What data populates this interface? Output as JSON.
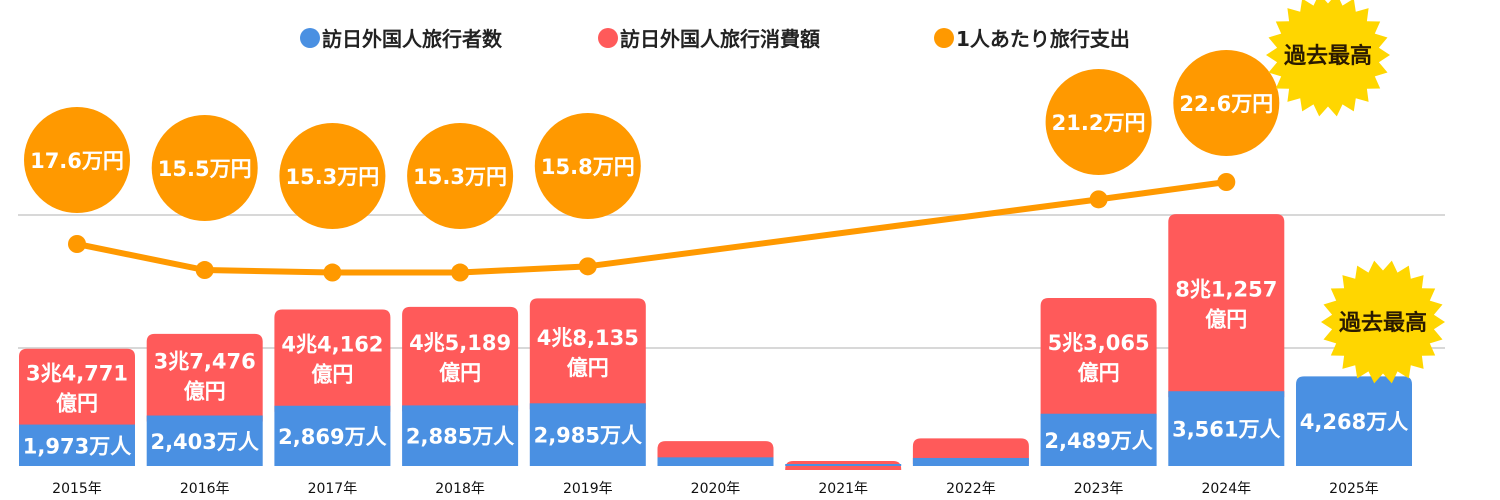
{
  "chart_data": {
    "type": "bar",
    "stacked": true,
    "categories": [
      "2015年",
      "2016年",
      "2017年",
      "2018年",
      "2019年",
      "2020年",
      "2021年",
      "2022年",
      "2023年",
      "2024年",
      "2025年"
    ],
    "series": [
      {
        "name": "訪日外国人旅行者数",
        "color": "#4a90e2",
        "unit": "万人",
        "values": [
          1973,
          2403,
          2869,
          2885,
          2985,
          412,
          25,
          383,
          2489,
          3561,
          4268
        ],
        "labels": [
          "1,973万人",
          "2,403万人",
          "2,869万人",
          "2,885万人",
          "2,985万人",
          "",
          "",
          "",
          "2,489万人",
          "3,561万人",
          "4,268万人"
        ]
      },
      {
        "name": "訪日外国人旅行消費額",
        "color": "#ff5a5a",
        "unit": "億円",
        "values": [
          34771,
          37476,
          44162,
          45189,
          48135,
          7446,
          1208,
          8987,
          53065,
          81257,
          null
        ],
        "labels": [
          [
            "3兆4,771",
            "億円"
          ],
          [
            "3兆7,476",
            "億円"
          ],
          [
            "4兆4,162",
            "億円"
          ],
          [
            "4兆5,189",
            "億円"
          ],
          [
            "4兆8,135",
            "億円"
          ],
          null,
          null,
          null,
          [
            "5兆3,065",
            "億円"
          ],
          [
            "8兆1,257",
            "億円"
          ],
          null
        ]
      },
      {
        "name": "1人あたり旅行支出",
        "type": "line",
        "color": "#ff9900",
        "unit": "万円",
        "values": [
          17.6,
          15.5,
          15.3,
          15.3,
          15.8,
          null,
          null,
          null,
          21.2,
          22.6,
          null
        ],
        "labels": [
          "17.6万円",
          "15.5万円",
          "15.3万円",
          "15.3万円",
          "15.8万円",
          null,
          null,
          null,
          "21.2万円",
          "22.6万円",
          null
        ]
      }
    ],
    "legend": {
      "position": "top"
    },
    "grid": true,
    "badges": [
      "過去最高",
      "過去最高"
    ]
  }
}
